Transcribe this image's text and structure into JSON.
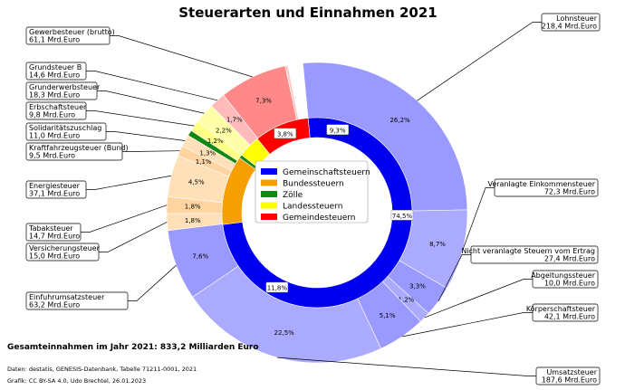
{
  "chart_data": {
    "type": "pie",
    "title": "Steuerarten und Einnahmen 2021",
    "unit": "Mrd.Euro",
    "inner": [
      {
        "name": "Gemeinschaftsteuern",
        "percent": 74.5,
        "color": "#0000ee"
      },
      {
        "name": "Bundessteuern",
        "percent": 11.8,
        "color": "#f5a000"
      },
      {
        "name": "Zölle",
        "percent": 0.6,
        "color": "#118811"
      },
      {
        "name": "Landessteuern",
        "percent": 3.8,
        "color": "#ffff00"
      },
      {
        "name": "Gemeindesteuern",
        "percent": 9.3,
        "color": "#ff0000"
      }
    ],
    "outer": [
      {
        "name": "Lohnsteuer",
        "value": "218,4",
        "percent": 26.2,
        "pct_label": "26,2%",
        "color": "#9999ff"
      },
      {
        "name": "Veranlagte Einkommensteuer",
        "value": "72,3",
        "percent": 8.7,
        "pct_label": "8,7%",
        "color": "#aaaaff"
      },
      {
        "name": "Nicht veranlagte Steuern vom Ertrag",
        "value": "27,4",
        "percent": 3.3,
        "pct_label": "3,3%",
        "color": "#9999ff"
      },
      {
        "name": "Abgeltungssteuer",
        "value": "10,0",
        "percent": 1.2,
        "pct_label": "1,2%",
        "color": "#aaaaff"
      },
      {
        "name": "Körperschaftsteuer",
        "value": "42,1",
        "percent": 5.1,
        "pct_label": "5,1%",
        "color": "#9999ff"
      },
      {
        "name": "Umsatzsteuer",
        "value": "187,6",
        "percent": 22.5,
        "pct_label": "22,5%",
        "color": "#aaaaff"
      },
      {
        "name": "Einfuhrumsatzsteuer",
        "value": "63,2",
        "percent": 7.6,
        "pct_label": "7,6%",
        "color": "#9999ff"
      },
      {
        "name": "Versicherungsteuer",
        "value": "15,0",
        "percent": 1.8,
        "pct_label": "1,8%",
        "color": "#ffe0b8"
      },
      {
        "name": "Tabaksteuer",
        "value": "14,7",
        "percent": 1.8,
        "pct_label": "1,8%",
        "color": "#ffd4a0"
      },
      {
        "name": "Energiesteuer",
        "value": "37,1",
        "percent": 4.5,
        "pct_label": "4,5%",
        "color": "#ffe0b8"
      },
      {
        "name": "Kraftfahrzeugsteuer (Bund)",
        "value": "9,5",
        "percent": 1.1,
        "pct_label": "1,1%",
        "color": "#ffd4a0"
      },
      {
        "name": "Solidaritätszuschlag",
        "value": "11,0",
        "percent": 1.3,
        "pct_label": "1,3%",
        "color": "#ffe0b8"
      },
      {
        "name": "Zölle",
        "value": "",
        "percent": 0.6,
        "pct_label": "",
        "color": "#118811"
      },
      {
        "name": "Erbschaftsteuer",
        "value": "9,8",
        "percent": 1.2,
        "pct_label": "1,2%",
        "color": "#ffff88"
      },
      {
        "name": "Grunderwerbsteuer",
        "value": "18,3",
        "percent": 2.2,
        "pct_label": "2,2%",
        "color": "#ffffaa"
      },
      {
        "name": "Grundsteuer B",
        "value": "14,6",
        "percent": 1.7,
        "pct_label": "1,7%",
        "color": "#ffbbbb"
      },
      {
        "name": "Gewerbesteuer (brutto)",
        "value": "61,1",
        "percent": 7.3,
        "pct_label": "7,3%",
        "color": "#ff8888"
      },
      {
        "name": "Other",
        "value": "",
        "percent": 0.3,
        "pct_label": "",
        "color": "#ffcccc"
      }
    ],
    "inner_labels": [
      "74,5%",
      "11,8%",
      "3,8%",
      "9,3%"
    ]
  },
  "total_text": "Gesamteinnahmen im Jahr 2021: 833,2 Milliarden Euro",
  "source_text": "Daten: destatis, GENESIS-Datenbank, Tabelle 71211-0001, 2021",
  "credit_text": "Grafik: CC BY-SA 4.0, Udo Brechtel, 26.01.2023"
}
